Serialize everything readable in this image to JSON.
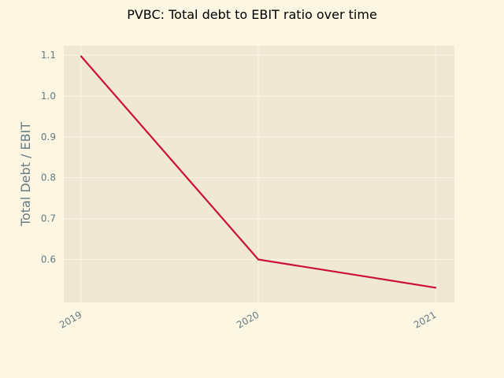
{
  "chart_data": {
    "type": "line",
    "title": "PVBC: Total debt to EBIT ratio over time",
    "xlabel": "",
    "ylabel": "Total Debt / EBIT",
    "categories": [
      "2019",
      "2020",
      "2021"
    ],
    "series": [
      {
        "values": [
          1.097,
          0.6,
          0.531
        ]
      }
    ],
    "ylim": [
      0.495,
      1.123
    ],
    "yticks": [
      "0.6",
      "0.7",
      "0.8",
      "0.9",
      "1.0",
      "1.1"
    ],
    "grid": true,
    "colors": {
      "background": "#fdf6e3",
      "plot_background": "#eee8d5",
      "grid": "#fdf6e3",
      "line": "#cb1136",
      "tick_text": "#657b83"
    }
  }
}
